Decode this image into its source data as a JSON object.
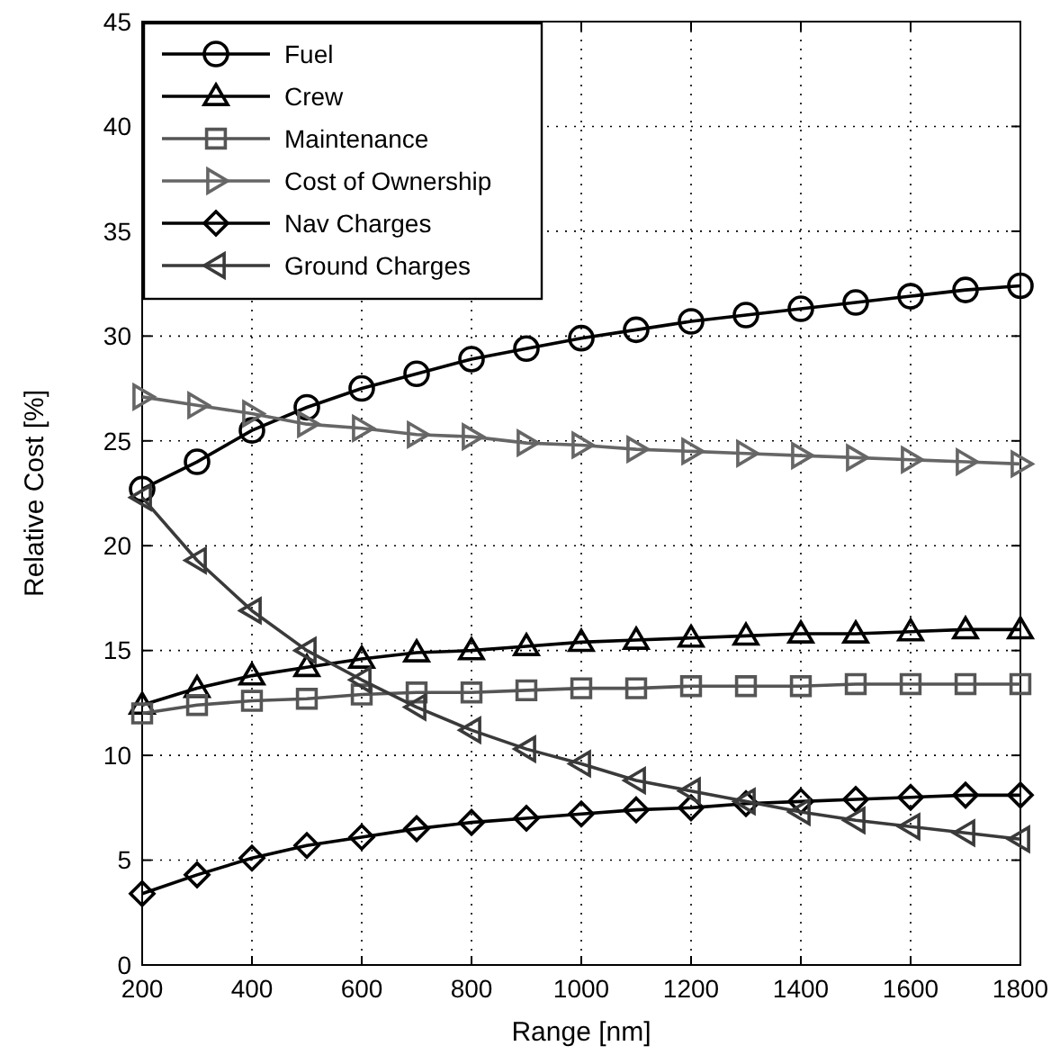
{
  "chart_data": {
    "type": "line",
    "xlabel": "Range [nm]",
    "ylabel": "Relative Cost [%]",
    "x": [
      200,
      300,
      400,
      500,
      600,
      700,
      800,
      900,
      1000,
      1100,
      1200,
      1300,
      1400,
      1500,
      1600,
      1700,
      1800
    ],
    "xlim": [
      200,
      1800
    ],
    "xticks": [
      200,
      400,
      600,
      800,
      1000,
      1200,
      1400,
      1600,
      1800
    ],
    "ylim": [
      0,
      45
    ],
    "yticks": [
      0,
      5,
      10,
      15,
      20,
      25,
      30,
      35,
      40,
      45
    ],
    "grid": true,
    "legend": "top left",
    "line_style": "solid",
    "series": [
      {
        "name": "Fuel",
        "color": "#000000",
        "marker": "circle",
        "values": [
          22.7,
          24.0,
          25.5,
          26.6,
          27.5,
          28.2,
          28.9,
          29.4,
          29.9,
          30.3,
          30.7,
          31.0,
          31.3,
          31.6,
          31.9,
          32.2,
          32.4
        ]
      },
      {
        "name": "Crew",
        "color": "#000000",
        "marker": "triangle",
        "values": [
          12.4,
          13.2,
          13.8,
          14.2,
          14.6,
          14.9,
          15.0,
          15.2,
          15.4,
          15.5,
          15.6,
          15.7,
          15.8,
          15.8,
          15.9,
          16.0,
          16.0
        ]
      },
      {
        "name": "Maintenance",
        "color": "#555555",
        "marker": "square",
        "values": [
          12.0,
          12.4,
          12.6,
          12.7,
          12.9,
          13.0,
          13.0,
          13.1,
          13.2,
          13.2,
          13.3,
          13.3,
          13.3,
          13.4,
          13.4,
          13.4,
          13.4
        ]
      },
      {
        "name": "Cost of Ownership",
        "color": "#666666",
        "marker": "triangle-right",
        "values": [
          27.1,
          26.7,
          26.3,
          25.8,
          25.6,
          25.3,
          25.2,
          24.9,
          24.8,
          24.6,
          24.5,
          24.4,
          24.3,
          24.2,
          24.1,
          24.0,
          23.9
        ]
      },
      {
        "name": "Nav Charges",
        "color": "#000000",
        "marker": "diamond",
        "values": [
          3.4,
          4.3,
          5.1,
          5.7,
          6.1,
          6.5,
          6.8,
          7.0,
          7.2,
          7.4,
          7.5,
          7.7,
          7.8,
          7.9,
          8.0,
          8.1,
          8.1
        ]
      },
      {
        "name": "Ground Charges",
        "color": "#3a3a3a",
        "marker": "triangle-left",
        "values": [
          22.3,
          19.3,
          16.9,
          15.0,
          13.6,
          12.3,
          11.2,
          10.3,
          9.6,
          8.8,
          8.3,
          7.8,
          7.3,
          6.9,
          6.6,
          6.3,
          6.0
        ]
      }
    ]
  }
}
